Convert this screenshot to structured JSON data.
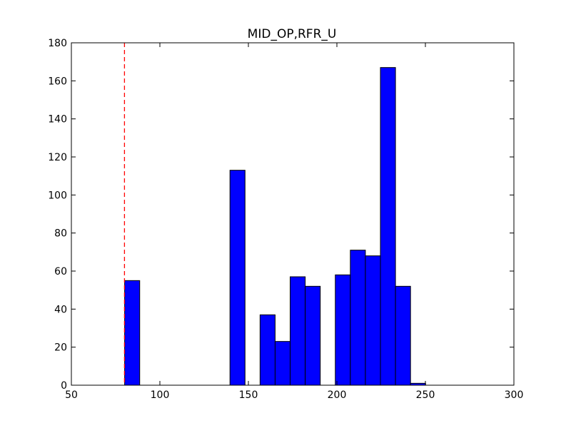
{
  "chart_data": {
    "type": "bar",
    "title": "MID_OP,RFR_U",
    "xlabel": "",
    "ylabel": "",
    "xlim": [
      50,
      300
    ],
    "ylim": [
      0,
      180
    ],
    "xticks": [
      50,
      100,
      150,
      200,
      250,
      300
    ],
    "yticks": [
      0,
      20,
      40,
      60,
      80,
      100,
      120,
      140,
      160,
      180
    ],
    "bar_color": "#0000ff",
    "reference_line": {
      "x": 80,
      "color": "#ff0000",
      "style": "dashed"
    },
    "bins": [
      {
        "x0": 80.1,
        "x1": 88.6,
        "count": 55
      },
      {
        "x0": 88.6,
        "x1": 97.1,
        "count": 0
      },
      {
        "x0": 97.1,
        "x1": 105.6,
        "count": 0
      },
      {
        "x0": 105.6,
        "x1": 114.1,
        "count": 0
      },
      {
        "x0": 114.1,
        "x1": 122.6,
        "count": 0
      },
      {
        "x0": 122.6,
        "x1": 131.1,
        "count": 0
      },
      {
        "x0": 131.1,
        "x1": 139.6,
        "count": 0
      },
      {
        "x0": 139.6,
        "x1": 148.1,
        "count": 113
      },
      {
        "x0": 148.1,
        "x1": 156.6,
        "count": 0
      },
      {
        "x0": 156.6,
        "x1": 165.1,
        "count": 37
      },
      {
        "x0": 165.1,
        "x1": 173.6,
        "count": 23
      },
      {
        "x0": 173.6,
        "x1": 182.1,
        "count": 57
      },
      {
        "x0": 182.1,
        "x1": 190.6,
        "count": 52
      },
      {
        "x0": 190.6,
        "x1": 199.1,
        "count": 0
      },
      {
        "x0": 199.1,
        "x1": 207.6,
        "count": 58
      },
      {
        "x0": 207.6,
        "x1": 216.1,
        "count": 71
      },
      {
        "x0": 216.1,
        "x1": 224.6,
        "count": 68
      },
      {
        "x0": 224.6,
        "x1": 233.1,
        "count": 167
      },
      {
        "x0": 233.1,
        "x1": 241.6,
        "count": 52
      },
      {
        "x0": 241.6,
        "x1": 250.1,
        "count": 1
      }
    ]
  }
}
